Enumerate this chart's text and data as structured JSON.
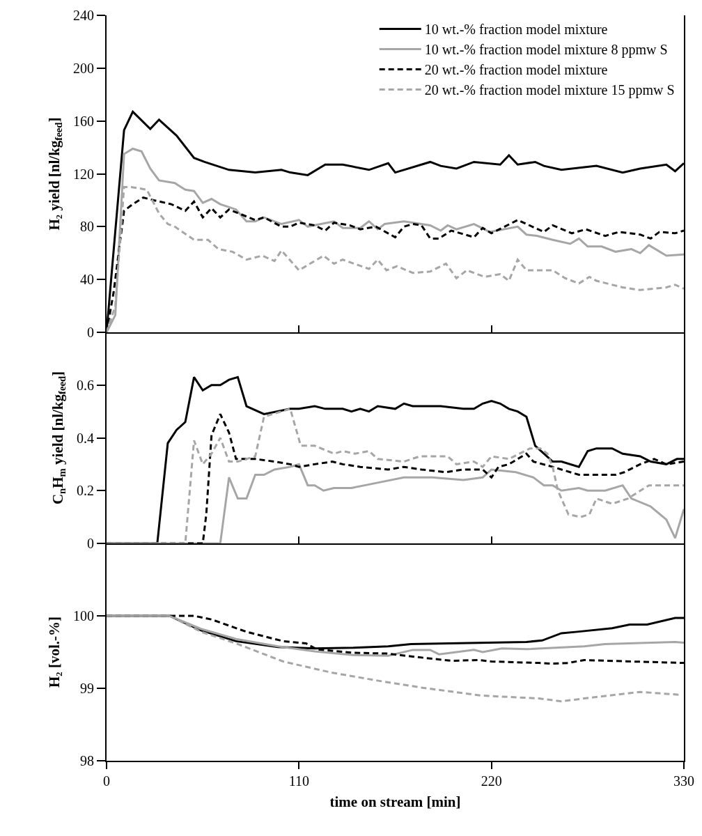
{
  "chart_data": [
    {
      "type": "line",
      "ylabel": "H₂ yield [nl/kg$_{feed}$]",
      "xlim": [
        0,
        330
      ],
      "xticks": [
        0,
        110,
        220,
        330
      ],
      "ylim": [
        0,
        240
      ],
      "yticks": [
        0,
        40,
        80,
        120,
        160,
        200,
        240
      ],
      "tick_labels": "y",
      "grid": false,
      "legend": "top right",
      "marker": "none",
      "series": [
        {
          "name": "10 wt.-% fraction model mixture",
          "color": "#000000",
          "line_style": "solid",
          "x": [
            0,
            10,
            15,
            25,
            30,
            40,
            50,
            56,
            70,
            85,
            100,
            105,
            115,
            125,
            135,
            150,
            161,
            165,
            185,
            191,
            200,
            210,
            225,
            230,
            235,
            245,
            250,
            260,
            280,
            295,
            305,
            320,
            325,
            330
          ],
          "values": [
            0,
            153,
            167,
            154,
            161,
            149,
            132,
            129,
            123,
            121,
            123,
            121,
            119,
            127,
            127,
            123,
            128,
            121,
            129,
            126,
            124,
            129,
            127,
            134,
            127,
            129,
            126,
            123,
            126,
            121,
            124,
            127,
            122,
            128
          ]
        },
        {
          "name": "10 wt.-% fraction model mixture 8 ppmw S",
          "color": "#a6a6a6",
          "line_style": "solid",
          "x": [
            0,
            5,
            10,
            15,
            20,
            25,
            30,
            39,
            45,
            50,
            55,
            60,
            65,
            74,
            80,
            85,
            90,
            100,
            110,
            115,
            130,
            135,
            145,
            150,
            155,
            159,
            170,
            185,
            191,
            195,
            200,
            210,
            219,
            235,
            240,
            246,
            255,
            265,
            270,
            275,
            283,
            291,
            300,
            305,
            310,
            320,
            330
          ],
          "values": [
            0,
            13,
            135,
            139,
            137,
            124,
            115,
            113,
            108,
            107,
            98,
            101,
            97,
            93,
            84,
            84,
            87,
            82,
            85,
            80,
            84,
            79,
            79,
            84,
            78,
            82,
            84,
            81,
            77,
            81,
            78,
            82,
            76,
            80,
            74,
            73,
            70,
            67,
            71,
            65,
            65,
            61,
            63,
            60,
            66,
            58,
            59
          ]
        },
        {
          "name": "20 wt.-% fraction model mixture",
          "color": "#000000",
          "line_style": "dashed",
          "x": [
            0,
            4,
            10,
            15,
            21,
            27,
            37,
            45,
            50,
            55,
            60,
            65,
            70,
            85,
            90,
            100,
            105,
            110,
            119,
            125,
            130,
            139,
            145,
            154,
            165,
            170,
            175,
            180,
            185,
            190,
            197,
            210,
            215,
            220,
            235,
            250,
            255,
            266,
            274,
            285,
            293,
            305,
            311,
            316,
            325,
            330
          ],
          "values": [
            0,
            30,
            92,
            97,
            102,
            100,
            97,
            92,
            99,
            87,
            94,
            87,
            93,
            85,
            87,
            80,
            80,
            83,
            81,
            77,
            83,
            81,
            78,
            80,
            72,
            80,
            82,
            81,
            71,
            71,
            77,
            72,
            79,
            75,
            85,
            76,
            81,
            75,
            78,
            73,
            76,
            74,
            71,
            76,
            75,
            77
          ]
        },
        {
          "name": "20 wt.-% fraction model mixture 15 ppmw S",
          "color": "#a6a6a6",
          "line_style": "dashed",
          "x": [
            0,
            5,
            10,
            14,
            23,
            30,
            35,
            39,
            50,
            58,
            64,
            72,
            80,
            89,
            96,
            100,
            110,
            124,
            130,
            135,
            150,
            155,
            160,
            166,
            175,
            185,
            194,
            200,
            206,
            216,
            225,
            230,
            235,
            240,
            255,
            262,
            270,
            276,
            280,
            295,
            305,
            320,
            325,
            330
          ],
          "values": [
            0,
            20,
            110,
            110,
            108,
            90,
            82,
            80,
            70,
            70,
            63,
            61,
            55,
            58,
            54,
            62,
            47,
            58,
            52,
            55,
            48,
            55,
            47,
            50,
            45,
            46,
            52,
            41,
            47,
            42,
            44,
            39,
            55,
            47,
            47,
            41,
            37,
            42,
            39,
            34,
            32,
            34,
            36,
            33
          ]
        }
      ]
    },
    {
      "type": "line",
      "ylabel": "C$_{n}$H$_{m}$ yield [nl/kg$_{feed}$]",
      "xlim": [
        0,
        330
      ],
      "xticks": [
        0,
        110,
        220,
        330
      ],
      "ylim": [
        0,
        0.8
      ],
      "yticks": [
        0,
        0.2,
        0.4,
        0.6
      ],
      "tick_labels": "y",
      "grid": false,
      "marker": "none",
      "series": [
        {
          "color": "#000000",
          "line_style": "solid",
          "x": [
            0,
            29,
            35,
            40,
            45,
            50,
            55,
            60,
            65,
            70,
            75,
            80,
            90,
            105,
            110,
            119,
            125,
            135,
            140,
            145,
            150,
            155,
            165,
            170,
            175,
            180,
            191,
            204,
            210,
            215,
            220,
            225,
            230,
            235,
            240,
            245,
            250,
            255,
            260,
            270,
            275,
            280,
            289,
            295,
            305,
            311,
            320,
            326,
            330
          ],
          "values": [
            0,
            0,
            0.38,
            0.43,
            0.46,
            0.63,
            0.58,
            0.6,
            0.6,
            0.62,
            0.63,
            0.52,
            0.49,
            0.51,
            0.51,
            0.52,
            0.51,
            0.51,
            0.5,
            0.51,
            0.5,
            0.52,
            0.51,
            0.53,
            0.52,
            0.52,
            0.52,
            0.51,
            0.51,
            0.53,
            0.54,
            0.53,
            0.51,
            0.5,
            0.48,
            0.37,
            0.34,
            0.31,
            0.31,
            0.29,
            0.35,
            0.36,
            0.36,
            0.34,
            0.33,
            0.31,
            0.3,
            0.32,
            0.32
          ]
        },
        {
          "color": "#a6a6a6",
          "line_style": "solid",
          "x": [
            0,
            65,
            70,
            75,
            80,
            85,
            90,
            96,
            105,
            110,
            115,
            119,
            124,
            130,
            140,
            155,
            170,
            186,
            204,
            215,
            220,
            234,
            244,
            250,
            255,
            260,
            270,
            275,
            285,
            295,
            300,
            311,
            320,
            325,
            330
          ],
          "values": [
            0,
            0,
            0.25,
            0.17,
            0.17,
            0.26,
            0.26,
            0.28,
            0.29,
            0.3,
            0.22,
            0.22,
            0.2,
            0.21,
            0.21,
            0.23,
            0.25,
            0.25,
            0.24,
            0.25,
            0.28,
            0.27,
            0.25,
            0.22,
            0.22,
            0.2,
            0.21,
            0.2,
            0.2,
            0.22,
            0.17,
            0.14,
            0.09,
            0.02,
            0.13
          ]
        },
        {
          "color": "#000000",
          "line_style": "dashed",
          "x": [
            0,
            55,
            57,
            60,
            65,
            70,
            74,
            85,
            96,
            105,
            110,
            119,
            129,
            135,
            145,
            161,
            170,
            180,
            194,
            204,
            215,
            220,
            224,
            230,
            240,
            244,
            255,
            270,
            275,
            291,
            296,
            305,
            313,
            320,
            330
          ],
          "values": [
            0,
            0,
            0.11,
            0.41,
            0.49,
            0.42,
            0.32,
            0.32,
            0.31,
            0.3,
            0.29,
            0.3,
            0.31,
            0.3,
            0.29,
            0.28,
            0.29,
            0.28,
            0.27,
            0.28,
            0.28,
            0.25,
            0.29,
            0.3,
            0.34,
            0.31,
            0.29,
            0.26,
            0.26,
            0.26,
            0.27,
            0.3,
            0.32,
            0.3,
            0.31
          ]
        },
        {
          "color": "#a6a6a6",
          "line_style": "dashed",
          "x": [
            0,
            45,
            50,
            55,
            60,
            65,
            70,
            75,
            85,
            90,
            105,
            111,
            119,
            130,
            135,
            142,
            150,
            155,
            170,
            179,
            195,
            200,
            210,
            215,
            220,
            230,
            242,
            248,
            252,
            255,
            258,
            264,
            271,
            276,
            280,
            289,
            298,
            310,
            321,
            330
          ],
          "values": [
            0,
            0,
            0.39,
            0.3,
            0.34,
            0.4,
            0.31,
            0.31,
            0.33,
            0.48,
            0.51,
            0.37,
            0.37,
            0.34,
            0.35,
            0.34,
            0.35,
            0.32,
            0.31,
            0.33,
            0.33,
            0.3,
            0.31,
            0.29,
            0.33,
            0.32,
            0.36,
            0.36,
            0.34,
            0.29,
            0.2,
            0.11,
            0.1,
            0.11,
            0.17,
            0.15,
            0.17,
            0.22,
            0.22,
            0.22
          ]
        }
      ]
    },
    {
      "type": "line",
      "xlabel": "time on stream [min]",
      "ylabel": "H₂ [vol.-%]",
      "xlim": [
        0,
        330
      ],
      "xticks": [
        0,
        110,
        220,
        330
      ],
      "ylim": [
        98,
        101
      ],
      "yticks": [
        98,
        99,
        100
      ],
      "grid": false,
      "marker": "none",
      "series": [
        {
          "color": "#000000",
          "line_style": "solid",
          "x": [
            0,
            36,
            54,
            74,
            98,
            119,
            141,
            161,
            174,
            218,
            240,
            249,
            260,
            269,
            289,
            299,
            309,
            325,
            330
          ],
          "values": [
            100,
            100,
            99.8,
            99.65,
            99.57,
            99.55,
            99.56,
            99.58,
            99.61,
            99.63,
            99.64,
            99.66,
            99.76,
            99.78,
            99.83,
            99.88,
            99.88,
            99.97,
            99.97
          ]
        },
        {
          "color": "#a6a6a6",
          "line_style": "solid",
          "x": [
            0,
            36,
            54,
            74,
            98,
            119,
            141,
            161,
            175,
            185,
            190,
            210,
            215,
            226,
            240,
            273,
            285,
            325,
            330
          ],
          "values": [
            100,
            100,
            99.82,
            99.68,
            99.58,
            99.51,
            99.46,
            99.45,
            99.53,
            99.53,
            99.47,
            99.53,
            99.5,
            99.55,
            99.54,
            99.58,
            99.61,
            99.64,
            99.63
          ]
        },
        {
          "color": "#000000",
          "line_style": "dashed",
          "x": [
            0,
            50,
            60,
            80,
            101,
            114,
            120,
            141,
            160,
            178,
            197,
            213,
            220,
            247,
            255,
            264,
            273,
            300,
            330
          ],
          "values": [
            100,
            100,
            99.95,
            99.78,
            99.65,
            99.62,
            99.54,
            99.49,
            99.48,
            99.43,
            99.38,
            99.39,
            99.37,
            99.35,
            99.34,
            99.35,
            99.39,
            99.37,
            99.35
          ]
        },
        {
          "color": "#a6a6a6",
          "line_style": "dashed",
          "x": [
            0,
            36,
            54,
            74,
            101,
            128,
            154,
            180,
            214,
            247,
            260,
            273,
            287,
            305,
            328
          ],
          "values": [
            100,
            100,
            99.78,
            99.62,
            99.37,
            99.22,
            99.11,
            99.01,
            98.9,
            98.86,
            98.82,
            98.86,
            98.9,
            98.95,
            98.91
          ]
        }
      ]
    }
  ]
}
